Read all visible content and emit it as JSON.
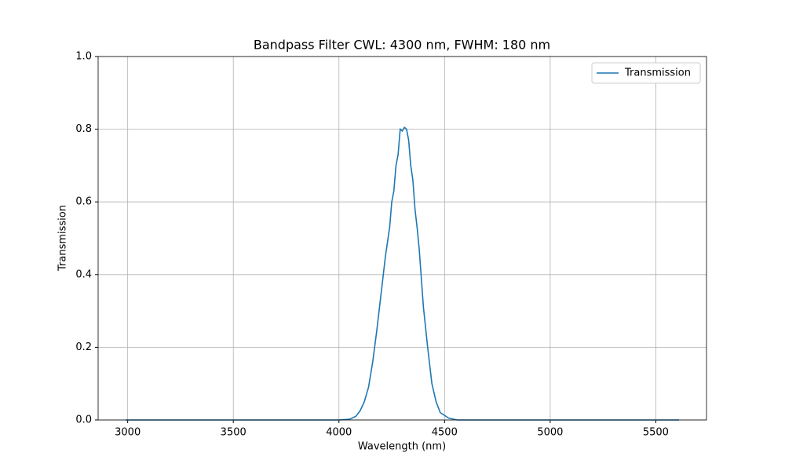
{
  "chart_data": {
    "type": "line",
    "title": "Bandpass Filter CWL: 4300 nm, FWHM: 180 nm",
    "x_label": "Wavelength (nm)",
    "y_label": "Transmission",
    "x": [
      2990,
      3500,
      4000,
      4050,
      4080,
      4100,
      4120,
      4140,
      4160,
      4180,
      4200,
      4220,
      4240,
      4250,
      4260,
      4270,
      4280,
      4290,
      4300,
      4310,
      4320,
      4330,
      4340,
      4350,
      4360,
      4370,
      4380,
      4390,
      4400,
      4420,
      4440,
      4460,
      4480,
      4520,
      4560,
      5000,
      5610
    ],
    "series": [
      {
        "name": "Transmission",
        "color": "#1f77b4",
        "values": [
          0,
          0,
          0,
          0.002,
          0.01,
          0.025,
          0.05,
          0.09,
          0.16,
          0.25,
          0.35,
          0.45,
          0.53,
          0.6,
          0.63,
          0.7,
          0.73,
          0.8,
          0.795,
          0.805,
          0.8,
          0.77,
          0.7,
          0.66,
          0.58,
          0.53,
          0.47,
          0.39,
          0.31,
          0.2,
          0.1,
          0.05,
          0.02,
          0.005,
          0,
          0,
          0
        ]
      }
    ],
    "xlim": [
      2860,
      5740
    ],
    "ylim": [
      0,
      1
    ],
    "xticks": [
      3000,
      3500,
      4000,
      4500,
      5000,
      5500
    ],
    "yticks": [
      {
        "value": 0,
        "label": "0.0"
      },
      {
        "value": 0.2,
        "label": "0.2"
      },
      {
        "value": 0.4,
        "label": "0.4"
      },
      {
        "value": 0.6,
        "label": "0.6"
      },
      {
        "value": 0.8,
        "label": "0.8"
      },
      {
        "value": 1,
        "label": "1.0"
      }
    ],
    "grid": true,
    "legend": "upper right"
  }
}
